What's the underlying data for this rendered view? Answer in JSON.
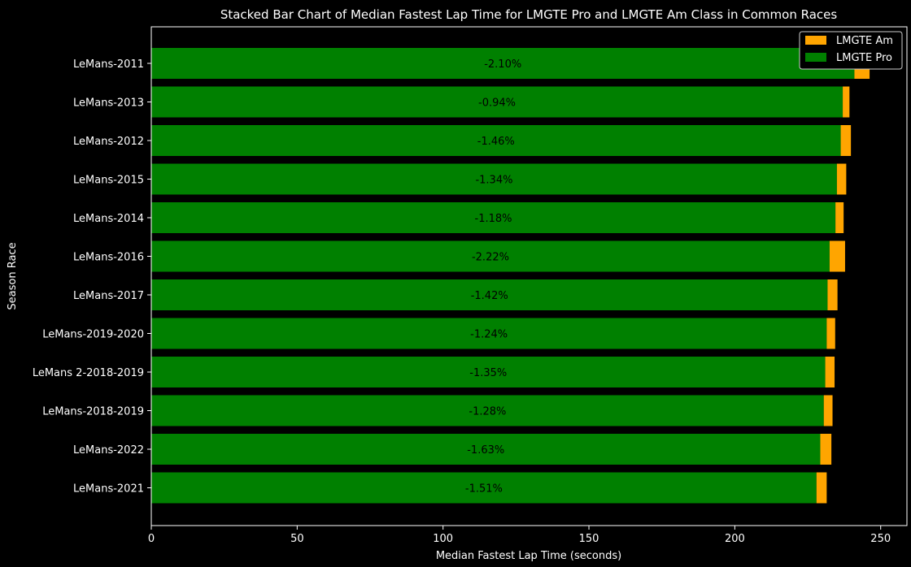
{
  "chart_data": {
    "type": "bar",
    "orientation": "horizontal",
    "stacked": true,
    "title": "Stacked Bar Chart of Median Fastest Lap Time for LMGTE Pro and LMGTE Am Class in Common Races",
    "xlabel": "Median Fastest Lap Time (seconds)",
    "ylabel": "Season Race",
    "xlim": [
      0,
      259
    ],
    "xticks": [
      0,
      50,
      100,
      150,
      200,
      250
    ],
    "grid": false,
    "legend_position": "top-right",
    "categories": [
      "LeMans-2011",
      "LeMans-2013",
      "LeMans-2012",
      "LeMans-2015",
      "LeMans-2014",
      "LeMans-2016",
      "LeMans-2017",
      "LeMans-2019-2020",
      "LeMans 2-2018-2019",
      "LeMans-2018-2019",
      "LeMans-2022",
      "LeMans-2021"
    ],
    "series": [
      {
        "name": "LMGTE Pro",
        "color": "#008000",
        "values": [
          241.0,
          237.0,
          236.3,
          235.0,
          234.5,
          232.5,
          231.8,
          231.5,
          231.0,
          230.5,
          229.3,
          228.0
        ]
      },
      {
        "name": "LMGTE Am",
        "color": "#ffa500",
        "values": [
          5.2,
          2.3,
          3.5,
          3.2,
          2.8,
          5.3,
          3.4,
          2.9,
          3.2,
          3.0,
          3.8,
          3.5
        ]
      }
    ],
    "annotations": [
      "-2.10%",
      "-0.94%",
      "-1.46%",
      "-1.34%",
      "-1.18%",
      "-2.22%",
      "-1.42%",
      "-1.24%",
      "-1.35%",
      "-1.28%",
      "-1.63%",
      "-1.51%"
    ],
    "legend_order": [
      "LMGTE Am",
      "LMGTE Pro"
    ]
  }
}
